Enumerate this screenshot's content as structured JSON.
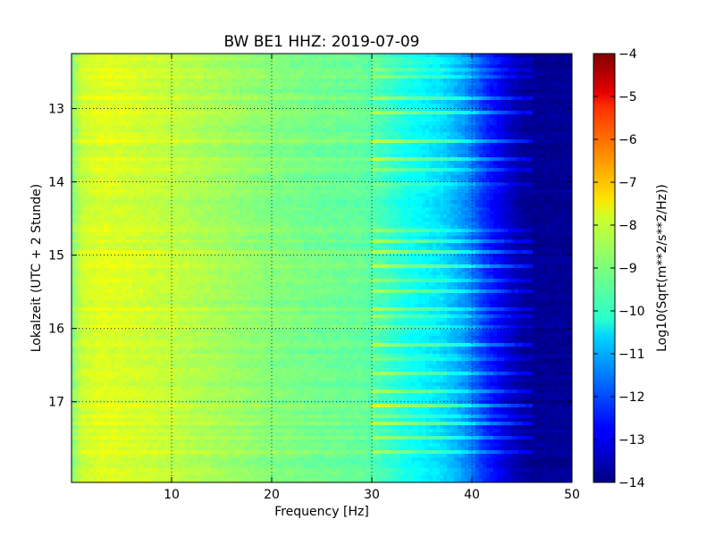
{
  "chart_data": {
    "type": "heatmap",
    "title": "BW BE1 HHZ: 2019-07-09",
    "xlabel": "Frequency [Hz]",
    "ylabel": "Lokalzeit (UTC + 2 Stunde)",
    "xlim": [
      0,
      50
    ],
    "ylim": [
      12.25,
      18.1
    ],
    "y_inverted": true,
    "x_ticks": [
      10,
      20,
      30,
      40,
      50
    ],
    "y_ticks": [
      13,
      14,
      15,
      16,
      17
    ],
    "grid": true,
    "colorbar": {
      "label": "Log10(Sqrt(m**2/s**2/Hz))",
      "range": [
        -14,
        -4
      ],
      "ticks": [
        -4,
        -5,
        -6,
        -7,
        -8,
        -9,
        -10,
        -11,
        -12,
        -13,
        -14
      ],
      "colormap": "jet"
    },
    "spectrum_profile": {
      "frequency_hz": [
        0,
        1,
        3,
        6,
        10,
        15,
        20,
        25,
        29,
        31,
        33,
        35,
        37,
        39,
        40,
        41,
        43,
        44,
        45,
        46,
        50
      ],
      "level": [
        -9.0,
        -8.3,
        -8.1,
        -8.2,
        -8.4,
        -8.7,
        -9.0,
        -9.2,
        -9.3,
        -9.6,
        -10.0,
        -10.3,
        -10.6,
        -11.2,
        -11.6,
        -12.2,
        -13.0,
        -13.4,
        -13.7,
        -13.8,
        -13.8
      ]
    },
    "bright_bands_hours": [
      12.35,
      12.45,
      12.55,
      12.85,
      13.05,
      13.45,
      13.68,
      13.85,
      14.05,
      14.68,
      14.8,
      14.95,
      15.15,
      15.33,
      15.5,
      15.75,
      15.85,
      16.0,
      16.22,
      16.4,
      16.62,
      16.85,
      17.05,
      17.18,
      17.3,
      17.5,
      17.7
    ]
  }
}
